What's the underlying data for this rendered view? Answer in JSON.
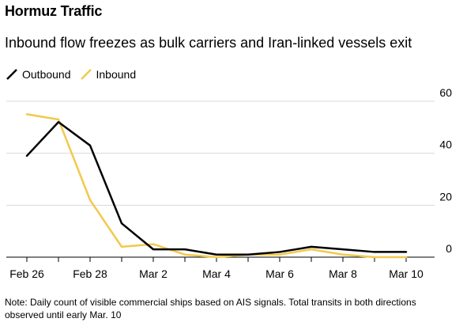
{
  "header": {
    "title": "Hormuz Traffic",
    "subtitle": "Inbound flow freezes as bulk carriers and Iran-linked vessels exit"
  },
  "footer": {
    "note": "Note: Daily count of visible commercial ships based on AIS signals. Total transits in both directions observed until early Mar. 10"
  },
  "colors": {
    "outbound": "#000000",
    "inbound": "#f2c94c",
    "grid": "#d9d9d9",
    "axis": "#000000"
  },
  "chart_data": {
    "type": "line",
    "title": "Hormuz Traffic",
    "subtitle": "Inbound flow freezes as bulk carriers and Iran-linked vessels exit",
    "x": [
      "Feb 26",
      "Feb 27",
      "Feb 28",
      "Mar 1",
      "Mar 2",
      "Mar 3",
      "Mar 4",
      "Mar 5",
      "Mar 6",
      "Mar 7",
      "Mar 8",
      "Mar 9",
      "Mar 10"
    ],
    "x_tick_labels": [
      "Feb 26",
      "Feb 28",
      "Mar 2",
      "Mar 4",
      "Mar 6",
      "Mar 8",
      "Mar 10"
    ],
    "series": [
      {
        "name": "Outbound",
        "color": "#000000",
        "values": [
          39,
          52,
          43,
          13,
          3,
          3,
          1,
          1,
          2,
          4,
          3,
          2,
          2
        ]
      },
      {
        "name": "Inbound",
        "color": "#f2c94c",
        "values": [
          55,
          53,
          22,
          4,
          5,
          1,
          0,
          1,
          1,
          3,
          1,
          0,
          0
        ]
      }
    ],
    "y_ticks": [
      0,
      20,
      40,
      60
    ],
    "ylim": [
      0,
      60
    ],
    "grid": true,
    "legend_position": "top-left",
    "y_axis_position": "right"
  }
}
